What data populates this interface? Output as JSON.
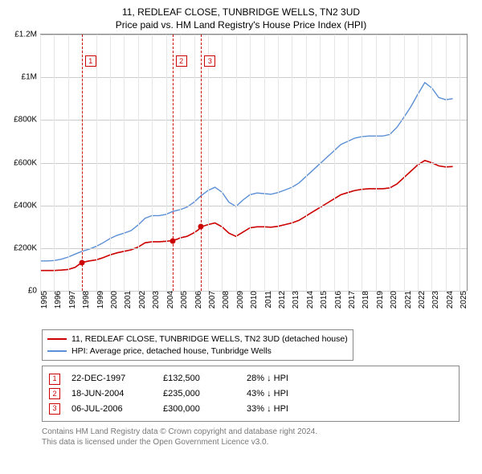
{
  "title_line1": "11, REDLEAF CLOSE, TUNBRIDGE WELLS, TN2 3UD",
  "title_line2": "Price paid vs. HM Land Registry's House Price Index (HPI)",
  "chart": {
    "type": "line",
    "background_color": "#ffffff",
    "grid_color_y": "#cccccc",
    "grid_color_x": "#e6e6e6",
    "xlim": [
      1995,
      2025.5
    ],
    "ylim": [
      0,
      1200000
    ],
    "ytick_step": 200000,
    "yticks": [
      {
        "v": 0,
        "label": "£0"
      },
      {
        "v": 200000,
        "label": "£200K"
      },
      {
        "v": 400000,
        "label": "£400K"
      },
      {
        "v": 600000,
        "label": "£600K"
      },
      {
        "v": 800000,
        "label": "£800K"
      },
      {
        "v": 1000000,
        "label": "£1M"
      },
      {
        "v": 1200000,
        "label": "£1.2M"
      }
    ],
    "xticks": [
      1995,
      1996,
      1997,
      1998,
      1999,
      2000,
      2001,
      2002,
      2003,
      2004,
      2005,
      2006,
      2007,
      2008,
      2009,
      2010,
      2011,
      2012,
      2013,
      2014,
      2015,
      2016,
      2017,
      2018,
      2019,
      2020,
      2021,
      2022,
      2023,
      2024,
      2025
    ],
    "series_red": {
      "color": "#cc0000",
      "line_width": 1.6,
      "label": "11, REDLEAF CLOSE, TUNBRIDGE WELLS, TN2 3UD (detached house)",
      "points": [
        [
          1995.0,
          95000
        ],
        [
          1995.5,
          95000
        ],
        [
          1996.0,
          95000
        ],
        [
          1996.5,
          97000
        ],
        [
          1997.0,
          100000
        ],
        [
          1997.5,
          110000
        ],
        [
          1997.97,
          132500
        ],
        [
          1998.5,
          140000
        ],
        [
          1999.0,
          145000
        ],
        [
          1999.5,
          155000
        ],
        [
          2000.0,
          168000
        ],
        [
          2000.5,
          178000
        ],
        [
          2001.0,
          185000
        ],
        [
          2001.5,
          192000
        ],
        [
          2002.0,
          205000
        ],
        [
          2002.5,
          225000
        ],
        [
          2003.0,
          230000
        ],
        [
          2003.5,
          230000
        ],
        [
          2004.0,
          232000
        ],
        [
          2004.46,
          235000
        ],
        [
          2004.8,
          242000
        ],
        [
          2005.0,
          248000
        ],
        [
          2005.5,
          255000
        ],
        [
          2006.0,
          272000
        ],
        [
          2006.3,
          285000
        ],
        [
          2006.51,
          300000
        ],
        [
          2007.0,
          310000
        ],
        [
          2007.5,
          318000
        ],
        [
          2008.0,
          300000
        ],
        [
          2008.5,
          270000
        ],
        [
          2009.0,
          255000
        ],
        [
          2009.5,
          275000
        ],
        [
          2010.0,
          295000
        ],
        [
          2010.5,
          300000
        ],
        [
          2011.0,
          300000
        ],
        [
          2011.5,
          298000
        ],
        [
          2012.0,
          302000
        ],
        [
          2012.5,
          310000
        ],
        [
          2013.0,
          318000
        ],
        [
          2013.5,
          330000
        ],
        [
          2014.0,
          350000
        ],
        [
          2014.5,
          370000
        ],
        [
          2015.0,
          390000
        ],
        [
          2015.5,
          410000
        ],
        [
          2016.0,
          430000
        ],
        [
          2016.5,
          450000
        ],
        [
          2017.0,
          460000
        ],
        [
          2017.5,
          470000
        ],
        [
          2018.0,
          475000
        ],
        [
          2018.5,
          478000
        ],
        [
          2019.0,
          478000
        ],
        [
          2019.5,
          478000
        ],
        [
          2020.0,
          482000
        ],
        [
          2020.5,
          500000
        ],
        [
          2021.0,
          530000
        ],
        [
          2021.5,
          560000
        ],
        [
          2022.0,
          590000
        ],
        [
          2022.5,
          610000
        ],
        [
          2023.0,
          600000
        ],
        [
          2023.5,
          585000
        ],
        [
          2024.0,
          580000
        ],
        [
          2024.5,
          582000
        ]
      ]
    },
    "series_blue": {
      "color": "#5b8fd6",
      "line_width": 1.4,
      "label": "HPI: Average price, detached house, Tunbridge Wells",
      "points": [
        [
          1995.0,
          140000
        ],
        [
          1995.5,
          140000
        ],
        [
          1996.0,
          142000
        ],
        [
          1996.5,
          148000
        ],
        [
          1997.0,
          158000
        ],
        [
          1997.5,
          172000
        ],
        [
          1998.0,
          185000
        ],
        [
          1998.5,
          195000
        ],
        [
          1999.0,
          208000
        ],
        [
          1999.5,
          225000
        ],
        [
          2000.0,
          245000
        ],
        [
          2000.5,
          260000
        ],
        [
          2001.0,
          270000
        ],
        [
          2001.5,
          282000
        ],
        [
          2002.0,
          308000
        ],
        [
          2002.5,
          340000
        ],
        [
          2003.0,
          352000
        ],
        [
          2003.5,
          352000
        ],
        [
          2004.0,
          358000
        ],
        [
          2004.5,
          372000
        ],
        [
          2005.0,
          380000
        ],
        [
          2005.5,
          392000
        ],
        [
          2006.0,
          415000
        ],
        [
          2006.5,
          445000
        ],
        [
          2007.0,
          470000
        ],
        [
          2007.5,
          485000
        ],
        [
          2008.0,
          462000
        ],
        [
          2008.5,
          415000
        ],
        [
          2009.0,
          395000
        ],
        [
          2009.5,
          425000
        ],
        [
          2010.0,
          450000
        ],
        [
          2010.5,
          458000
        ],
        [
          2011.0,
          455000
        ],
        [
          2011.5,
          452000
        ],
        [
          2012.0,
          460000
        ],
        [
          2012.5,
          472000
        ],
        [
          2013.0,
          485000
        ],
        [
          2013.5,
          505000
        ],
        [
          2014.0,
          535000
        ],
        [
          2014.5,
          565000
        ],
        [
          2015.0,
          595000
        ],
        [
          2015.5,
          625000
        ],
        [
          2016.0,
          655000
        ],
        [
          2016.5,
          685000
        ],
        [
          2017.0,
          700000
        ],
        [
          2017.5,
          715000
        ],
        [
          2018.0,
          722000
        ],
        [
          2018.5,
          725000
        ],
        [
          2019.0,
          725000
        ],
        [
          2019.5,
          725000
        ],
        [
          2020.0,
          732000
        ],
        [
          2020.5,
          765000
        ],
        [
          2021.0,
          812000
        ],
        [
          2021.5,
          862000
        ],
        [
          2022.0,
          920000
        ],
        [
          2022.5,
          975000
        ],
        [
          2023.0,
          950000
        ],
        [
          2023.5,
          905000
        ],
        [
          2024.0,
          895000
        ],
        [
          2024.5,
          900000
        ]
      ]
    },
    "transactions": [
      {
        "n": "1",
        "year": 1997.97,
        "price": 132500,
        "date": "22-DEC-1997",
        "price_label": "£132,500",
        "delta": "28% ↓ HPI"
      },
      {
        "n": "2",
        "year": 2004.46,
        "price": 235000,
        "date": "18-JUN-2004",
        "price_label": "£235,000",
        "delta": "43% ↓ HPI"
      },
      {
        "n": "3",
        "year": 2006.51,
        "price": 300000,
        "date": "06-JUL-2006",
        "price_label": "£300,000",
        "delta": "33% ↓ HPI"
      }
    ]
  },
  "footer_line1": "Contains HM Land Registry data © Crown copyright and database right 2024.",
  "footer_line2": "This data is licensed under the Open Government Licence v3.0."
}
